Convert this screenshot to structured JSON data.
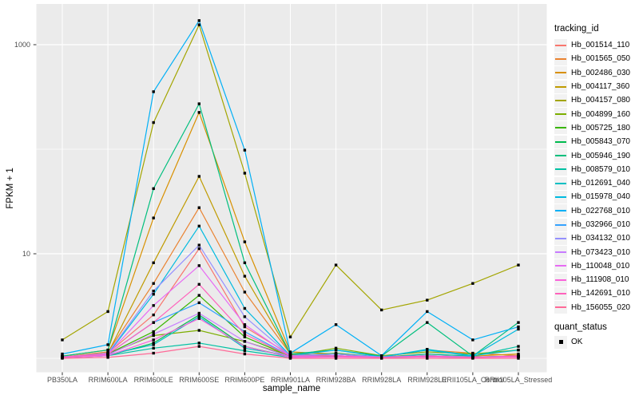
{
  "chart_data": {
    "type": "line",
    "title": "",
    "xlabel": "sample_name",
    "ylabel": "FPKM + 1",
    "yscale": "log10",
    "y_tick_values": [
      10,
      1000
    ],
    "y_minor_values": [
      1,
      100
    ],
    "ylim": [
      0.75,
      2400
    ],
    "grid": true,
    "legend_position": "right",
    "legend_title": "tracking_id",
    "quant_status": {
      "title": "quant_status",
      "label": "OK"
    },
    "point_color": "#000000",
    "style": {
      "panel_bg": "#EBEBEB",
      "grid_color": "#FFFFFF",
      "tick_color": "#333333",
      "axis_text_color": "#4D4D4D",
      "legend_key_bg": "#F2F2F2"
    },
    "categories": [
      "PB350LA",
      "RRIM600LA",
      "RRIM600LE",
      "RRIM600SE",
      "RRIM600PE",
      "RRIM901LA",
      "RRIM928BA",
      "RRIM928LA",
      "RRIM928LE",
      "RRII105LA_Control",
      "RRII105LA_Stressed"
    ],
    "series": [
      {
        "name": "Hb_001514_110",
        "color": "#F8766D",
        "values": [
          1.03,
          1.12,
          2.6,
          11.2,
          2.0,
          1.08,
          1.1,
          1.03,
          1.06,
          1.03,
          1.05
        ]
      },
      {
        "name": "Hb_001565_050",
        "color": "#EA8331",
        "values": [
          1.03,
          1.15,
          5.2,
          27.6,
          4.3,
          1.1,
          1.06,
          1.03,
          1.2,
          1.12,
          1.06
        ]
      },
      {
        "name": "Hb_002486_030",
        "color": "#D89000",
        "values": [
          1.05,
          1.2,
          22,
          225,
          13,
          1.15,
          1.1,
          1.03,
          1.1,
          1.05,
          1.1
        ]
      },
      {
        "name": "Hb_004117_360",
        "color": "#C09B00",
        "values": [
          1.03,
          1.12,
          8.2,
          55,
          6.1,
          1.1,
          1.05,
          1.03,
          1.05,
          1.03,
          1.03
        ]
      },
      {
        "name": "Hb_004157_080",
        "color": "#A3A500",
        "values": [
          1.5,
          2.8,
          180,
          1550,
          59,
          1.6,
          7.8,
          2.9,
          3.6,
          5.2,
          7.8
        ]
      },
      {
        "name": "Hb_004899_160",
        "color": "#7CAE00",
        "values": [
          1.03,
          1.1,
          1.65,
          1.85,
          1.45,
          1.06,
          1.25,
          1.06,
          1.15,
          1.1,
          1.2
        ]
      },
      {
        "name": "Hb_005725_180",
        "color": "#39B600",
        "values": [
          1.03,
          1.1,
          1.8,
          4.0,
          1.6,
          1.05,
          1.12,
          1.03,
          1.06,
          1.03,
          1.05
        ]
      },
      {
        "name": "Hb_005843_070",
        "color": "#00BB4E",
        "values": [
          1.02,
          1.06,
          1.4,
          2.6,
          1.3,
          1.03,
          1.05,
          1.02,
          1.03,
          1.02,
          1.05
        ]
      },
      {
        "name": "Hb_005946_190",
        "color": "#00BF7D",
        "values": [
          1.05,
          1.2,
          42,
          272,
          8.2,
          1.1,
          1.2,
          1.05,
          2.2,
          1.05,
          2.2
        ]
      },
      {
        "name": "Hb_008579_010",
        "color": "#00C1A3",
        "values": [
          1.02,
          1.06,
          1.25,
          1.4,
          1.18,
          1.02,
          1.06,
          1.02,
          1.1,
          1.05,
          1.3
        ]
      },
      {
        "name": "Hb_012691_040",
        "color": "#00BFC4",
        "values": [
          1.03,
          1.08,
          1.35,
          2.5,
          1.25,
          1.05,
          1.1,
          1.03,
          1.22,
          1.06,
          1.2
        ]
      },
      {
        "name": "Hb_015978_040",
        "color": "#00BAE0",
        "values": [
          1.03,
          1.1,
          4.1,
          18.4,
          3.0,
          1.06,
          1.2,
          1.03,
          1.2,
          1.05,
          1.9
        ]
      },
      {
        "name": "Hb_022768_010",
        "color": "#00B0F6",
        "values": [
          1.1,
          1.35,
          355,
          1700,
          98,
          1.12,
          2.1,
          1.06,
          2.8,
          1.5,
          2.0
        ]
      },
      {
        "name": "Hb_032966_010",
        "color": "#35A2FF",
        "values": [
          1.03,
          1.1,
          2.2,
          3.4,
          1.8,
          1.05,
          1.1,
          1.03,
          1.06,
          1.03,
          1.05
        ]
      },
      {
        "name": "Hb_034132_010",
        "color": "#9590FF",
        "values": [
          1.03,
          1.12,
          4.4,
          12.1,
          2.5,
          1.06,
          1.1,
          1.03,
          1.06,
          1.03,
          1.05
        ]
      },
      {
        "name": "Hb_073423_010",
        "color": "#C77CFF",
        "values": [
          1.02,
          1.08,
          1.7,
          2.7,
          1.45,
          1.03,
          1.06,
          1.02,
          1.05,
          1.02,
          1.05
        ]
      },
      {
        "name": "Hb_110048_010",
        "color": "#E76BF3",
        "values": [
          1.03,
          1.1,
          3.2,
          7.7,
          2.1,
          1.05,
          1.06,
          1.02,
          1.05,
          1.02,
          1.05
        ]
      },
      {
        "name": "Hb_111908_010",
        "color": "#FA62DB",
        "values": [
          1.02,
          1.06,
          1.5,
          2.4,
          1.3,
          1.02,
          1.03,
          1.02,
          1.03,
          1.02,
          1.03
        ]
      },
      {
        "name": "Hb_142691_010",
        "color": "#FF62BC",
        "values": [
          1.02,
          1.1,
          2.2,
          5.1,
          1.7,
          1.05,
          1.05,
          1.02,
          1.05,
          1.02,
          1.05
        ]
      },
      {
        "name": "Hb_156055_020",
        "color": "#FF6A98",
        "values": [
          1.0,
          1.02,
          1.12,
          1.3,
          1.1,
          1.0,
          1.0,
          1.0,
          1.0,
          1.0,
          1.0
        ]
      }
    ]
  }
}
